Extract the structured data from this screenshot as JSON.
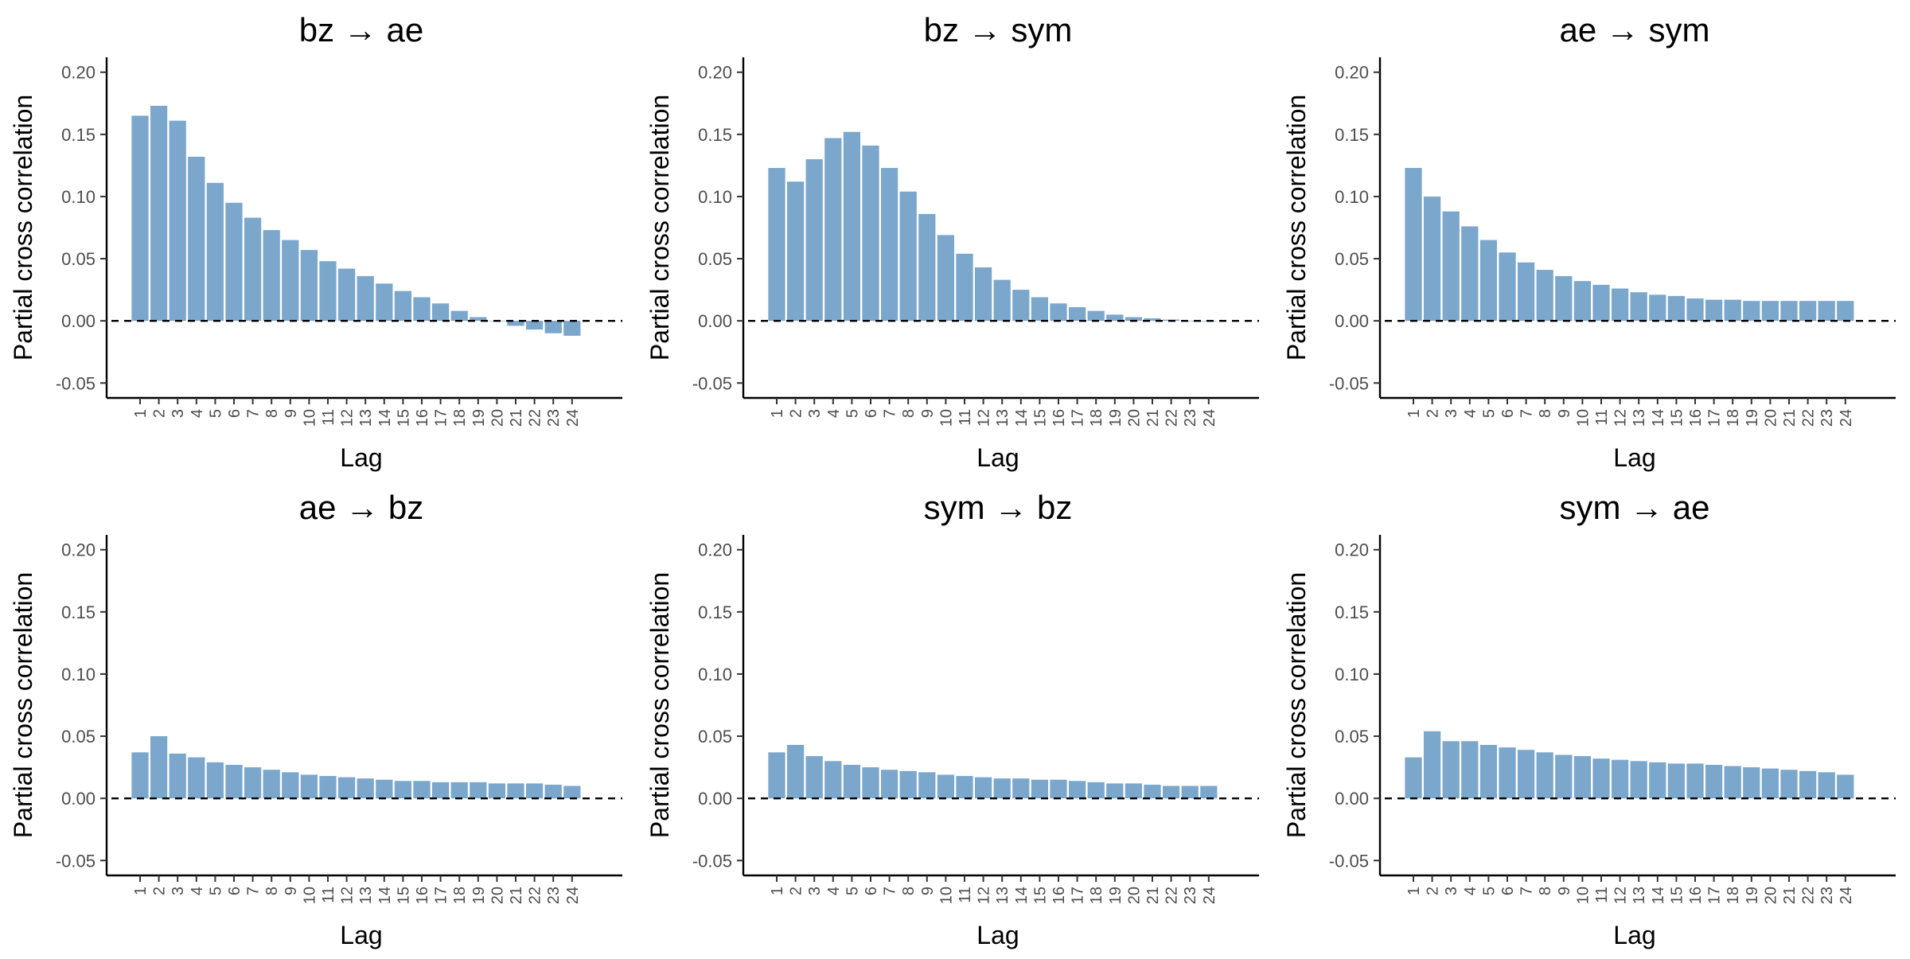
{
  "chart_data": [
    {
      "type": "bar",
      "title": "bz → ae",
      "xlabel": "Lag",
      "ylabel": "Partial cross correlation",
      "ylim": [
        -0.062,
        0.212
      ],
      "yticks": [
        "0.20",
        "0.15",
        "0.10",
        "0.05",
        "0.00",
        "-0.05"
      ],
      "categories": [
        "1",
        "2",
        "3",
        "4",
        "5",
        "6",
        "7",
        "8",
        "9",
        "10",
        "11",
        "12",
        "13",
        "14",
        "15",
        "16",
        "17",
        "18",
        "19",
        "20",
        "21",
        "22",
        "23",
        "24"
      ],
      "values": [
        0.165,
        0.173,
        0.161,
        0.132,
        0.111,
        0.095,
        0.083,
        0.073,
        0.065,
        0.057,
        0.048,
        0.042,
        0.036,
        0.03,
        0.024,
        0.019,
        0.014,
        0.008,
        0.003,
        0.0,
        -0.004,
        -0.007,
        -0.01,
        -0.012
      ],
      "bar_color": "#7BA7CC",
      "reference_line": 0.0
    },
    {
      "type": "bar",
      "title": "bz → sym",
      "xlabel": "Lag",
      "ylabel": "Partial cross correlation",
      "ylim": [
        -0.062,
        0.212
      ],
      "yticks": [
        "0.20",
        "0.15",
        "0.10",
        "0.05",
        "0.00",
        "-0.05"
      ],
      "categories": [
        "1",
        "2",
        "3",
        "4",
        "5",
        "6",
        "7",
        "8",
        "9",
        "10",
        "11",
        "12",
        "13",
        "14",
        "15",
        "16",
        "17",
        "18",
        "19",
        "20",
        "21",
        "22",
        "23",
        "24"
      ],
      "values": [
        0.123,
        0.112,
        0.13,
        0.147,
        0.152,
        0.141,
        0.123,
        0.104,
        0.086,
        0.069,
        0.054,
        0.043,
        0.033,
        0.025,
        0.019,
        0.014,
        0.011,
        0.008,
        0.005,
        0.003,
        0.002,
        0.001,
        0.0,
        0.0
      ],
      "bar_color": "#7BA7CC",
      "reference_line": 0.0
    },
    {
      "type": "bar",
      "title": "ae → sym",
      "xlabel": "Lag",
      "ylabel": "Partial cross correlation",
      "ylim": [
        -0.062,
        0.212
      ],
      "yticks": [
        "0.20",
        "0.15",
        "0.10",
        "0.05",
        "0.00",
        "-0.05"
      ],
      "categories": [
        "1",
        "2",
        "3",
        "4",
        "5",
        "6",
        "7",
        "8",
        "9",
        "10",
        "11",
        "12",
        "13",
        "14",
        "15",
        "16",
        "17",
        "18",
        "19",
        "20",
        "21",
        "22",
        "23",
        "24"
      ],
      "values": [
        0.123,
        0.1,
        0.088,
        0.076,
        0.065,
        0.055,
        0.047,
        0.041,
        0.036,
        0.032,
        0.029,
        0.026,
        0.023,
        0.021,
        0.02,
        0.018,
        0.017,
        0.017,
        0.016,
        0.016,
        0.016,
        0.016,
        0.016,
        0.016
      ],
      "bar_color": "#7BA7CC",
      "reference_line": 0.0
    },
    {
      "type": "bar",
      "title": "ae → bz",
      "xlabel": "Lag",
      "ylabel": "Partial cross correlation",
      "ylim": [
        -0.062,
        0.212
      ],
      "yticks": [
        "0.20",
        "0.15",
        "0.10",
        "0.05",
        "0.00",
        "-0.05"
      ],
      "categories": [
        "1",
        "2",
        "3",
        "4",
        "5",
        "6",
        "7",
        "8",
        "9",
        "10",
        "11",
        "12",
        "13",
        "14",
        "15",
        "16",
        "17",
        "18",
        "19",
        "20",
        "21",
        "22",
        "23",
        "24"
      ],
      "values": [
        0.037,
        0.05,
        0.036,
        0.033,
        0.029,
        0.027,
        0.025,
        0.023,
        0.021,
        0.019,
        0.018,
        0.017,
        0.016,
        0.015,
        0.014,
        0.014,
        0.013,
        0.013,
        0.013,
        0.012,
        0.012,
        0.012,
        0.011,
        0.01
      ],
      "bar_color": "#7BA7CC",
      "reference_line": 0.0
    },
    {
      "type": "bar",
      "title": "sym → bz",
      "xlabel": "Lag",
      "ylabel": "Partial cross correlation",
      "ylim": [
        -0.062,
        0.212
      ],
      "yticks": [
        "0.20",
        "0.15",
        "0.10",
        "0.05",
        "0.00",
        "-0.05"
      ],
      "categories": [
        "1",
        "2",
        "3",
        "4",
        "5",
        "6",
        "7",
        "8",
        "9",
        "10",
        "11",
        "12",
        "13",
        "14",
        "15",
        "16",
        "17",
        "18",
        "19",
        "20",
        "21",
        "22",
        "23",
        "24"
      ],
      "values": [
        0.037,
        0.043,
        0.034,
        0.03,
        0.027,
        0.025,
        0.023,
        0.022,
        0.021,
        0.019,
        0.018,
        0.017,
        0.016,
        0.016,
        0.015,
        0.015,
        0.014,
        0.013,
        0.012,
        0.012,
        0.011,
        0.01,
        0.01,
        0.01
      ],
      "bar_color": "#7BA7CC",
      "reference_line": 0.0
    },
    {
      "type": "bar",
      "title": "sym → ae",
      "xlabel": "Lag",
      "ylabel": "Partial cross correlation",
      "ylim": [
        -0.062,
        0.212
      ],
      "yticks": [
        "0.20",
        "0.15",
        "0.10",
        "0.05",
        "0.00",
        "-0.05"
      ],
      "categories": [
        "1",
        "2",
        "3",
        "4",
        "5",
        "6",
        "7",
        "8",
        "9",
        "10",
        "11",
        "12",
        "13",
        "14",
        "15",
        "16",
        "17",
        "18",
        "19",
        "20",
        "21",
        "22",
        "23",
        "24"
      ],
      "values": [
        0.033,
        0.054,
        0.046,
        0.046,
        0.043,
        0.041,
        0.039,
        0.037,
        0.035,
        0.034,
        0.032,
        0.031,
        0.03,
        0.029,
        0.028,
        0.028,
        0.027,
        0.026,
        0.025,
        0.024,
        0.023,
        0.022,
        0.021,
        0.019
      ],
      "bar_color": "#7BA7CC",
      "reference_line": 0.0
    }
  ]
}
